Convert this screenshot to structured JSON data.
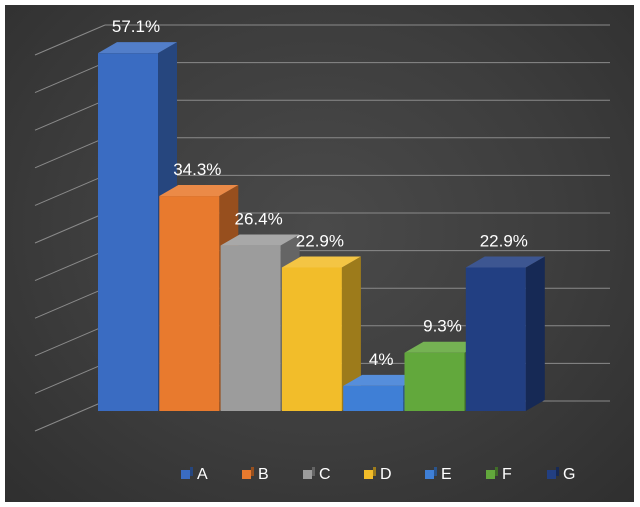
{
  "chart_data": {
    "type": "bar",
    "categories": [
      "A",
      "B",
      "C",
      "D",
      "E",
      "F",
      "G"
    ],
    "values": [
      57.1,
      34.3,
      26.4,
      22.9,
      4,
      9.3,
      22.9
    ],
    "value_labels": [
      "57.1%",
      "34.3%",
      "26.4%",
      "22.9%",
      "4%",
      "9.3%",
      "22.9%"
    ],
    "colors": [
      "#3a6cc2",
      "#e87a2e",
      "#9c9c9c",
      "#f2bd2a",
      "#3f7fd6",
      "#62a83c",
      "#223f82"
    ],
    "title": "",
    "xlabel": "",
    "ylabel": "",
    "ylim": [
      0,
      60
    ],
    "grid": true,
    "legend_position": "bottom",
    "style": "3d-columns"
  }
}
